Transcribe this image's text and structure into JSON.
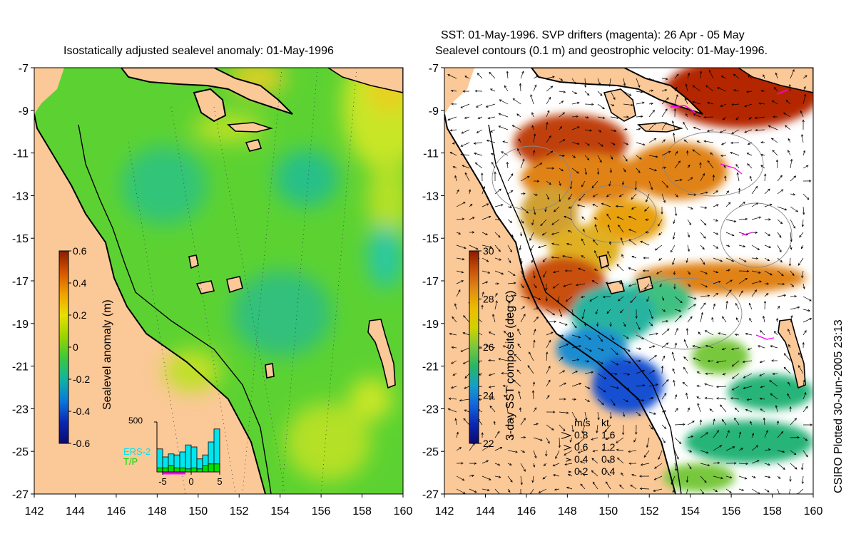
{
  "left_panel": {
    "title": "Isostatically adjusted sealevel anomaly: 01-May-1996",
    "colorbar": {
      "label": "Sealevel anomaly (m)",
      "ticks": [
        "0.6",
        "0.4",
        "0.2",
        "0",
        "-0.2",
        "-0.4",
        "-0.6"
      ],
      "colors": [
        "#8b1a00",
        "#d45500",
        "#f0a000",
        "#e8e000",
        "#9ad400",
        "#3cc83c",
        "#10b4a0",
        "#0a78dc",
        "#0a28b4",
        "#0a0a6e"
      ]
    },
    "histogram": {
      "ymax_label": "500",
      "x_ticks": [
        "-5",
        "0",
        "5"
      ],
      "series": [
        {
          "name": "ERS-2",
          "color": "#00e5ee",
          "values": [
            230,
            150,
            180,
            170,
            200,
            270,
            250,
            130,
            170,
            300,
            430
          ]
        },
        {
          "name": "T/P",
          "color": "#00e000",
          "values": [
            40,
            40,
            60,
            40,
            40,
            30,
            40,
            30,
            60,
            80,
            80
          ]
        }
      ],
      "marker_color": "#ff00ff"
    }
  },
  "right_panel": {
    "title_line1": "SST: 01-May-1996. SVP drifters (magenta): 26 Apr - 05 May",
    "title_line2": "Sealevel contours (0.1 m) and geostrophic velocity: 01-May-1996.",
    "colorbar": {
      "label": "3-day SST composite (deg C)",
      "ticks": [
        "30",
        "28",
        "26",
        "24",
        "22"
      ],
      "colors": [
        "#8b1a00",
        "#c8500a",
        "#e08c14",
        "#ecbe00",
        "#d2d200",
        "#78c83c",
        "#28b464",
        "#14a0c8",
        "#1464dc",
        "#0a28b4",
        "#0a0a6e"
      ]
    },
    "velocity_legend": {
      "header_ms": "m/s",
      "header_kt": "kt",
      "rows": [
        {
          "ms": "0.8",
          "kt": "1.6"
        },
        {
          "ms": "0.6",
          "kt": "1.2"
        },
        {
          "ms": "0.4",
          "kt": "0.8"
        },
        {
          "ms": "0.2",
          "kt": "0.4"
        }
      ]
    }
  },
  "axes": {
    "lon_labels": [
      "142",
      "144",
      "146",
      "148",
      "150",
      "152",
      "154",
      "156",
      "158",
      "160"
    ],
    "lat_labels": [
      "-7",
      "-9",
      "-11",
      "-13",
      "-15",
      "-17",
      "-19",
      "-21",
      "-23",
      "-25",
      "-27"
    ]
  },
  "credit": "CSIRO Plotted 30-Jun-2005 23:13",
  "colors": {
    "land": "#fbc898",
    "sea_green": "#5cd232",
    "sea_yellow": "#c8e628",
    "sst_red": "#b42800",
    "sst_orange": "#e08214",
    "arrows": "#000000",
    "drifters": "#ff00ff"
  }
}
